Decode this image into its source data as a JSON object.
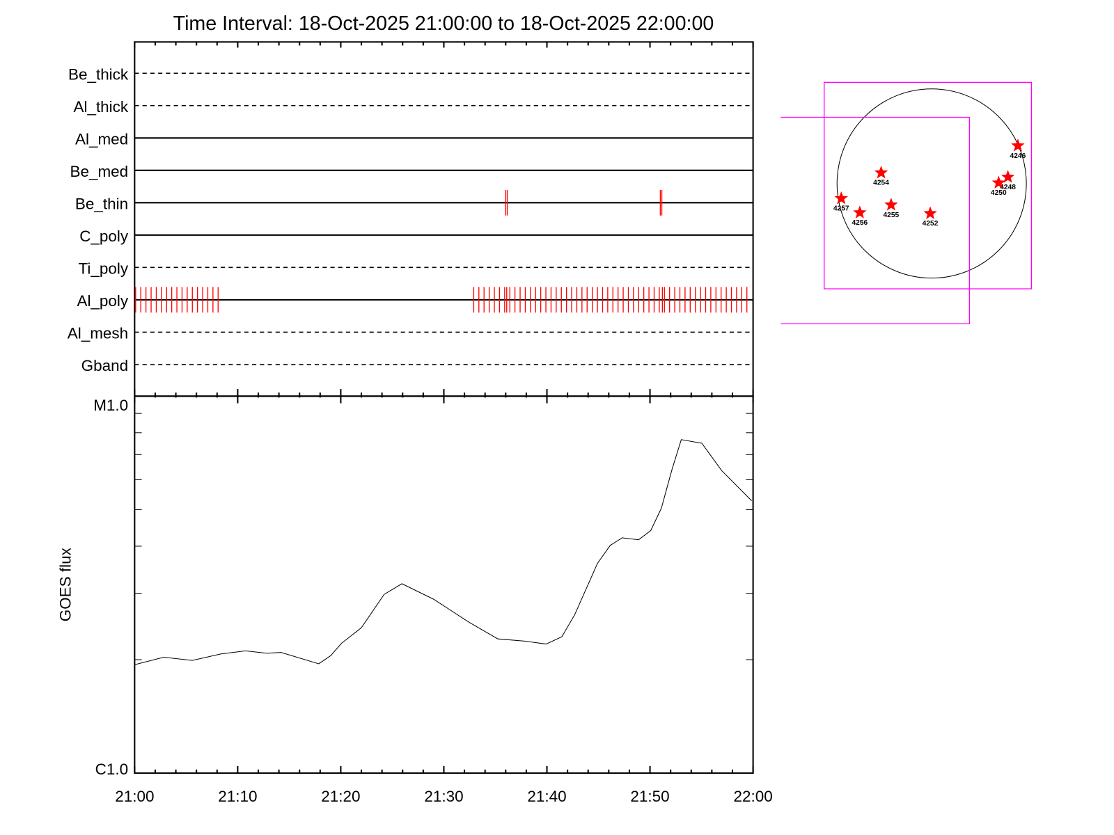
{
  "chart_data": [
    {
      "type": "timeline",
      "title": "Time Interval: 18-Oct-2025 21:00:00 to 18-Oct-2025 22:00:00",
      "x_range_minutes": [
        0,
        60
      ],
      "x_tick_labels": [
        "21:00",
        "21:10",
        "21:20",
        "21:30",
        "21:40",
        "21:50",
        "22:00"
      ],
      "filters": [
        {
          "name": "Be_thick",
          "style": "dashed",
          "exposures_min": []
        },
        {
          "name": "Al_thick",
          "style": "dashed",
          "exposures_min": []
        },
        {
          "name": "Al_med",
          "style": "solid",
          "exposures_min": []
        },
        {
          "name": "Be_med",
          "style": "solid",
          "exposures_min": []
        },
        {
          "name": "Be_thin",
          "style": "solid",
          "exposures_min": [
            36.0,
            36.15,
            51.0,
            51.15
          ]
        },
        {
          "name": "C_poly",
          "style": "solid",
          "exposures_min": []
        },
        {
          "name": "Ti_poly",
          "style": "dashed",
          "exposures_min": []
        },
        {
          "name": "Al_poly",
          "style": "solid",
          "exposure_runs": [
            {
              "start": 0.1,
              "end": 8.1,
              "step": 0.5
            },
            {
              "start": 32.9,
              "end": 59.7,
              "step": 0.5
            }
          ],
          "exposures_min": [
            36.1,
            51.2
          ]
        },
        {
          "name": "Al_mesh",
          "style": "dashed",
          "exposures_min": []
        },
        {
          "name": "Gband",
          "style": "dashed",
          "exposures_min": []
        }
      ],
      "exposure_color": "#ff0000"
    },
    {
      "type": "line",
      "ylabel": "GOES flux",
      "yscale": "log",
      "ylim": [
        1e-06,
        1e-05
      ],
      "y_tick_labels": [
        "C1.0",
        "M1.0"
      ],
      "x_range_minutes": [
        0,
        60
      ],
      "x_tick_labels": [
        "21:00",
        "21:10",
        "21:20",
        "21:30",
        "21:40",
        "21:50",
        "22:00"
      ],
      "x": [
        0,
        2.83,
        5.59,
        8.34,
        10.76,
        12.83,
        14.21,
        17.86,
        19.03,
        20.07,
        22.0,
        24.21,
        25.93,
        29.03,
        32.48,
        35.24,
        37.86,
        39.93,
        41.45,
        42.69,
        44.9,
        46.14,
        47.31,
        48.9,
        50.07,
        51.1,
        52.14,
        53.03,
        55.03,
        56.97,
        59.86
      ],
      "y": [
        1.94e-06,
        2.03e-06,
        1.99e-06,
        2.07e-06,
        2.11e-06,
        2.08e-06,
        2.09e-06,
        1.95e-06,
        2.05e-06,
        2.21e-06,
        2.43e-06,
        2.98e-06,
        3.18e-06,
        2.89e-06,
        2.51e-06,
        2.27e-06,
        2.24e-06,
        2.2e-06,
        2.3e-06,
        2.63e-06,
        3.6e-06,
        4.02e-06,
        4.21e-06,
        4.16e-06,
        4.4e-06,
        5.04e-06,
        6.4e-06,
        7.67e-06,
        7.5e-06,
        6.34e-06,
        5.28e-06
      ],
      "color": "#000000"
    },
    {
      "type": "scatter",
      "description_units": "arcsec from disk center",
      "disk_radius_arcsec": 970,
      "fov_boxes_arcsec": [
        {
          "x": [
            -1102,
            1022
          ],
          "y": [
            -1080,
            1037
          ],
          "color": "#ff00ff"
        },
        {
          "x": [
            -1548,
            387
          ],
          "y": [
            -1438,
            679
          ],
          "color": "#ff00ff"
        }
      ],
      "active_regions": [
        {
          "label": "4246",
          "x": 883,
          "y": 387
        },
        {
          "label": "4254",
          "x": -518,
          "y": 110
        },
        {
          "label": "4248",
          "x": 781,
          "y": 66
        },
        {
          "label": "4250",
          "x": 686,
          "y": 7
        },
        {
          "label": "4257",
          "x": -927,
          "y": -153
        },
        {
          "label": "4256",
          "x": -737,
          "y": -299
        },
        {
          "label": "4255",
          "x": -416,
          "y": -219
        },
        {
          "label": "4252",
          "x": -15,
          "y": -307
        }
      ],
      "marker_color": "#ff0000"
    }
  ]
}
